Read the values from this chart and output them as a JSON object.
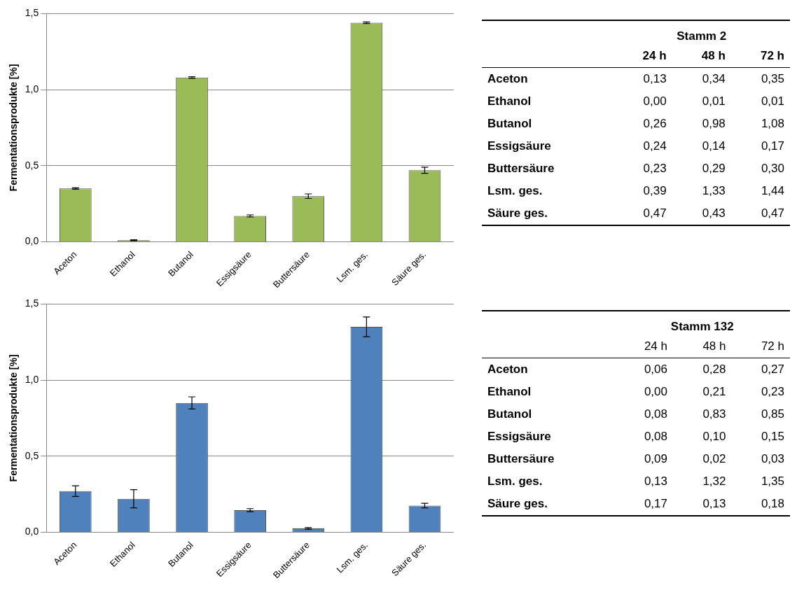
{
  "chart_data": [
    {
      "type": "bar",
      "ylabel": "Fermentationsprodukte [%]",
      "categories": [
        "Aceton",
        "Ethanol",
        "Butanol",
        "Essigsäure",
        "Buttersäure",
        "Lsm. ges.",
        "Säure ges."
      ],
      "values": [
        0.35,
        0.01,
        1.08,
        0.17,
        0.3,
        1.44,
        0.47
      ],
      "errors": [
        0.005,
        0.003,
        0.005,
        0.007,
        0.015,
        0.005,
        0.02
      ],
      "color": "#9bbb59",
      "ylim": [
        0,
        1.5
      ],
      "yticks": [
        {
          "value": 0,
          "label": "0,0"
        },
        {
          "value": 0.5,
          "label": "0,5"
        },
        {
          "value": 1,
          "label": "1,0"
        },
        {
          "value": 1.5,
          "label": "1,5"
        }
      ],
      "grid": "y"
    },
    {
      "type": "other",
      "title": "Stamm 2",
      "categories": [
        "24 h",
        "48 h",
        "72 h"
      ],
      "y_categories": [
        "Aceton",
        "Ethanol",
        "Butanol",
        "Essigsäure",
        "Buttersäure",
        "Lsm. ges.",
        "Säure ges."
      ],
      "cell_labels": [
        [
          "0,13",
          "0,34",
          "0,35"
        ],
        [
          "0,00",
          "0,01",
          "0,01"
        ],
        [
          "0,26",
          "0,98",
          "1,08"
        ],
        [
          "0,24",
          "0,14",
          "0,17"
        ],
        [
          "0,23",
          "0,29",
          "0,30"
        ],
        [
          "0,39",
          "1,33",
          "1,44"
        ],
        [
          "0,47",
          "0,43",
          "0,47"
        ]
      ]
    },
    {
      "type": "bar",
      "ylabel": "Fermentationsprodukte [%]",
      "categories": [
        "Aceton",
        "Ethanol",
        "Butanol",
        "Essigsäure",
        "Buttersäure",
        "Lsm. ges.",
        "Säure ges."
      ],
      "values": [
        0.27,
        0.22,
        0.85,
        0.145,
        0.025,
        1.35,
        0.175
      ],
      "errors": [
        0.035,
        0.06,
        0.04,
        0.01,
        0.005,
        0.065,
        0.015
      ],
      "color": "#4f81bd",
      "ylim": [
        0,
        1.5
      ],
      "yticks": [
        {
          "value": 0,
          "label": "0,0"
        },
        {
          "value": 0.5,
          "label": "0,5"
        },
        {
          "value": 1,
          "label": "1,0"
        },
        {
          "value": 1.5,
          "label": "1,5"
        }
      ],
      "grid": "y"
    },
    {
      "type": "other",
      "title": "Stamm 132",
      "categories": [
        "24 h",
        "48 h",
        "72 h"
      ],
      "y_categories": [
        "Aceton",
        "Ethanol",
        "Butanol",
        "Essigsäure",
        "Buttersäure",
        "Lsm. ges.",
        "Säure ges."
      ],
      "cell_labels": [
        [
          "0,06",
          "0,28",
          "0,27"
        ],
        [
          "0,00",
          "0,21",
          "0,23"
        ],
        [
          "0,08",
          "0,83",
          "0,85"
        ],
        [
          "0,08",
          "0,10",
          "0,15"
        ],
        [
          "0,09",
          "0,02",
          "0,03"
        ],
        [
          "0,13",
          "1,32",
          "1,35"
        ],
        [
          "0,17",
          "0,13",
          "0,18"
        ]
      ]
    }
  ]
}
